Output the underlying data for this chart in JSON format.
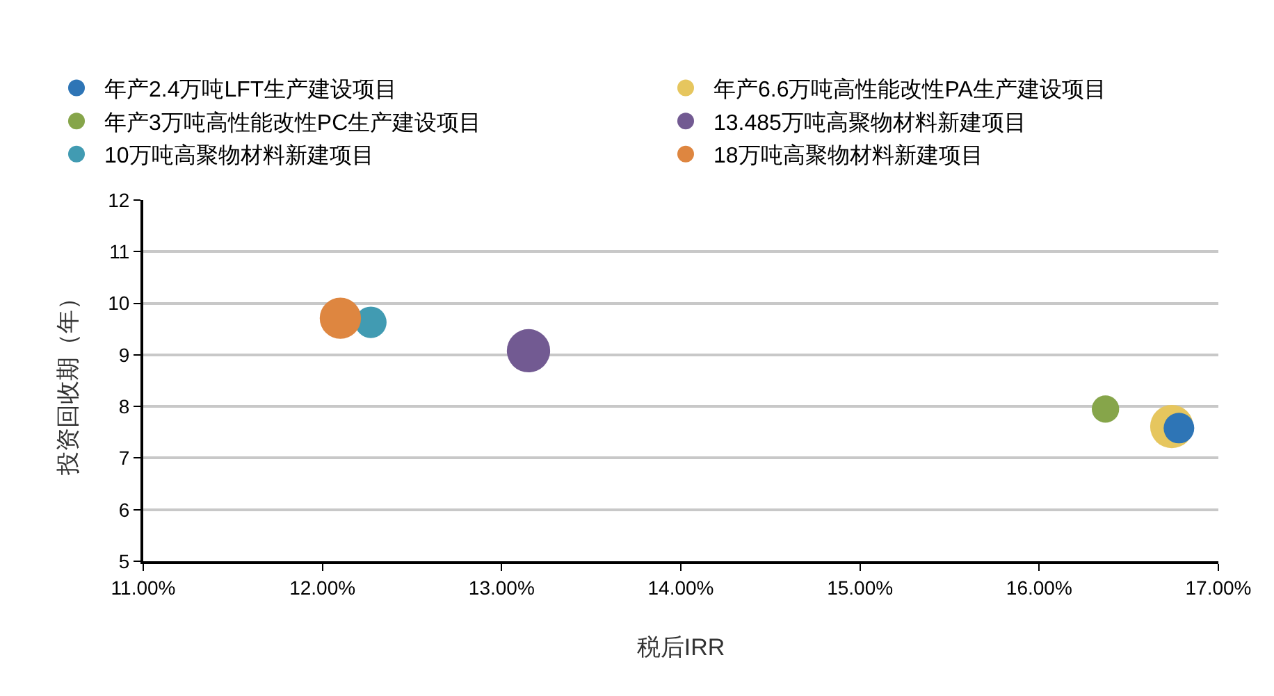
{
  "chart_data": {
    "type": "bubble",
    "xlabel": "税后IRR",
    "ylabel": "投资回收期（年）",
    "xlim": [
      11,
      17
    ],
    "xticks": [
      {
        "value": 11,
        "label": "11.00%"
      },
      {
        "value": 12,
        "label": "12.00%"
      },
      {
        "value": 13,
        "label": "13.00%"
      },
      {
        "value": 14,
        "label": "14.00%"
      },
      {
        "value": 15,
        "label": "15.00%"
      },
      {
        "value": 16,
        "label": "16.00%"
      },
      {
        "value": 17,
        "label": "17.00%"
      }
    ],
    "ylim": [
      5,
      12
    ],
    "yticks": [
      5,
      6,
      7,
      8,
      9,
      10,
      11,
      12
    ],
    "grid": "y",
    "legend": "top",
    "marker": "circle",
    "series": [
      {
        "name": "年产2.4万吨LFT生产建设项目",
        "color": "#2e75b6",
        "x": [
          16.78
        ],
        "values": [
          7.58
        ],
        "sizes": [
          0.5
        ]
      },
      {
        "name": "年产6.6万吨高性能改性PA生产建设项目",
        "color": "#e6c65e",
        "x": [
          16.74
        ],
        "values": [
          7.61
        ],
        "sizes": [
          1
        ]
      },
      {
        "name": "年产3万吨高性能改性PC生产建设项目",
        "color": "#86a54a",
        "x": [
          16.37
        ],
        "values": [
          7.95
        ],
        "sizes": [
          0.4
        ]
      },
      {
        "name": "13.485万吨高聚物材料新建项目",
        "color": "#725a92",
        "x": [
          13.15
        ],
        "values": [
          9.08
        ],
        "sizes": [
          1
        ]
      },
      {
        "name": "10万吨高聚物材料新建项目",
        "color": "#419bb2",
        "x": [
          12.27
        ],
        "values": [
          9.63
        ],
        "sizes": [
          0.53
        ]
      },
      {
        "name": "18万吨高聚物材料新建项目",
        "color": "#de8640",
        "x": [
          12.1
        ],
        "values": [
          9.71
        ],
        "sizes": [
          0.91
        ]
      }
    ]
  }
}
